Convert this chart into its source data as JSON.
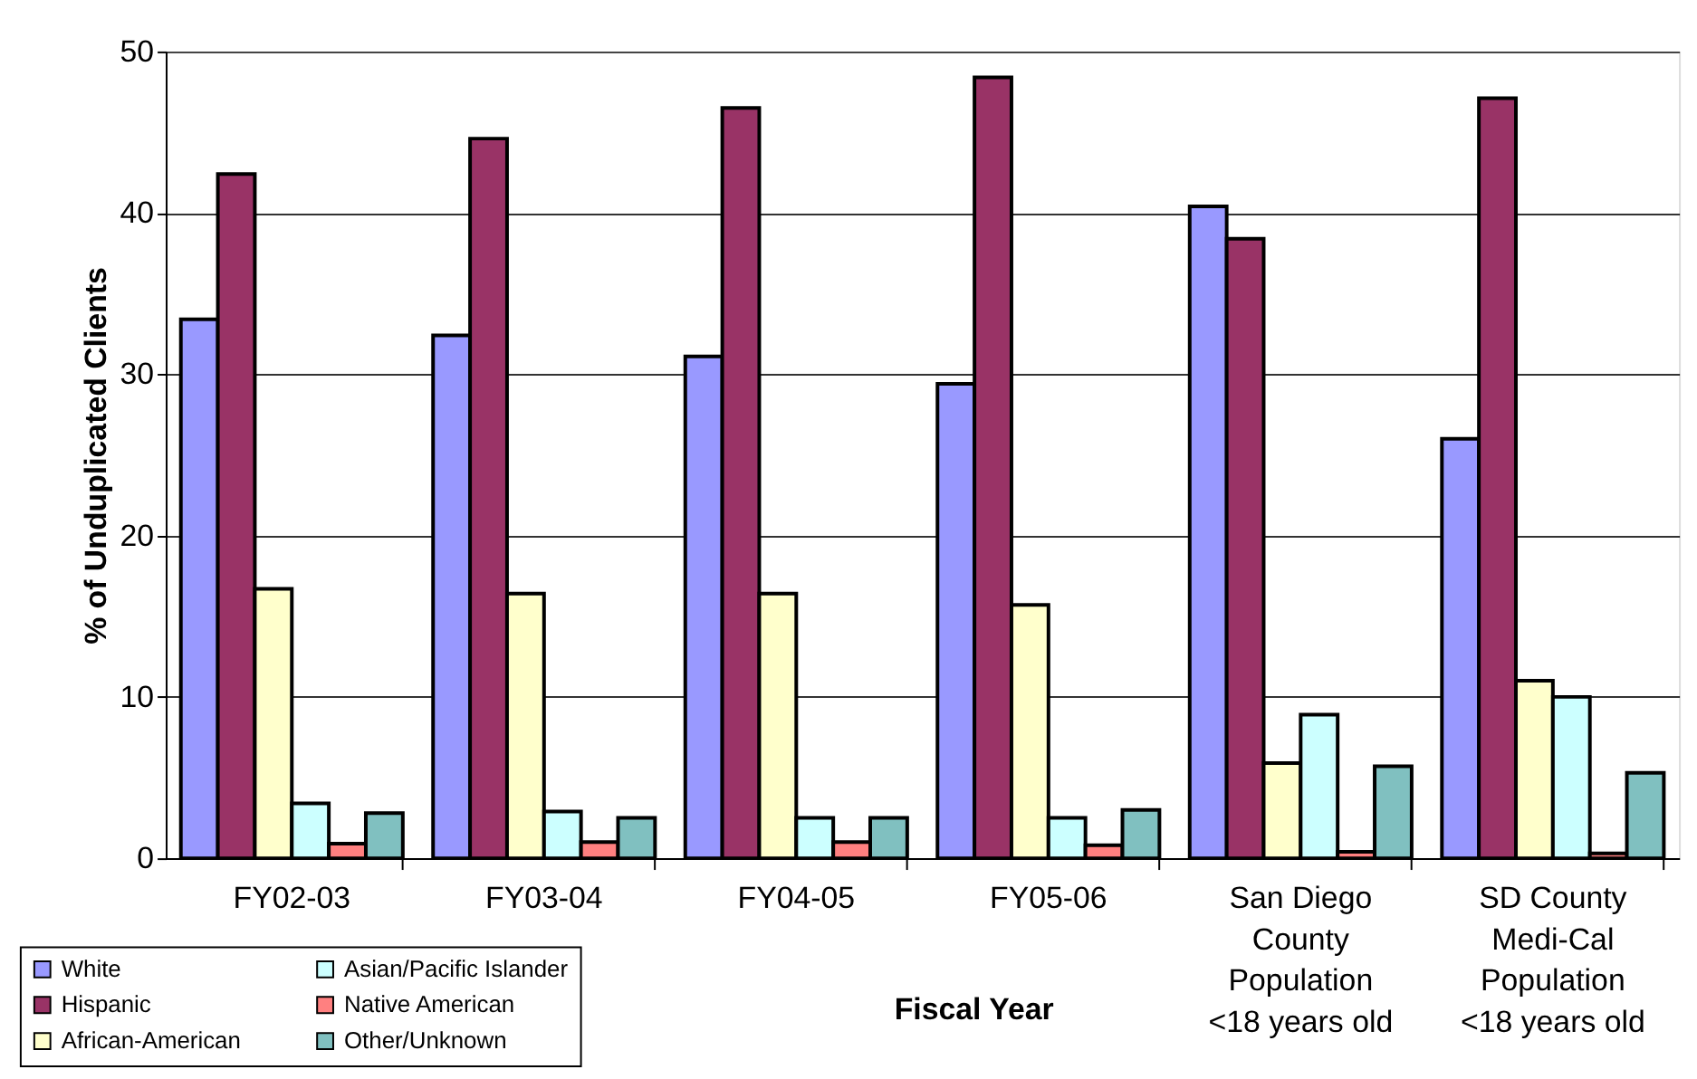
{
  "chart_data": {
    "type": "bar",
    "xlabel": "Fiscal Year",
    "ylabel": "% of Unduplicated Clients",
    "categories": [
      "FY02-03",
      "FY03-04",
      "FY04-05",
      "FY05-06",
      "San Diego County Population <18 years old",
      "SD County Medi-Cal Population <18 years old"
    ],
    "series": [
      {
        "name": "White",
        "color": "#9999ff",
        "values": [
          33.4,
          32.4,
          31.1,
          29.4,
          40.4,
          26.0
        ]
      },
      {
        "name": "Hispanic",
        "color": "#993366",
        "values": [
          42.4,
          44.6,
          46.5,
          48.4,
          38.4,
          47.1
        ]
      },
      {
        "name": "African-American",
        "color": "#ffffcc",
        "values": [
          16.7,
          16.4,
          16.4,
          15.7,
          5.9,
          11.0
        ]
      },
      {
        "name": "Asian/Pacific Islander",
        "color": "#ccffff",
        "values": [
          3.4,
          2.9,
          2.5,
          2.5,
          8.9,
          10.0
        ]
      },
      {
        "name": "Native American",
        "color": "#ff8080",
        "values": [
          0.9,
          1.0,
          1.0,
          0.8,
          0.4,
          0.3
        ]
      },
      {
        "name": "Other/Unknown",
        "color": "#80c0c0",
        "values": [
          2.8,
          2.5,
          2.5,
          3.0,
          5.7,
          5.3
        ]
      }
    ],
    "ylim": [
      0,
      50
    ],
    "yticks": [
      0,
      10,
      20,
      30,
      40,
      50
    ],
    "grid": "y",
    "legend": "bottom left"
  }
}
